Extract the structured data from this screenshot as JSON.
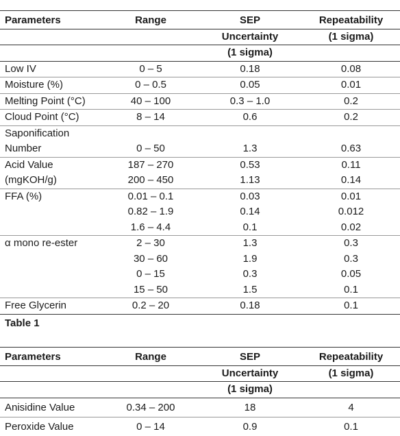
{
  "table1": {
    "headers": {
      "parameters": "Parameters",
      "range": "Range",
      "sep_line1": "SEP",
      "sep_line2": "Uncertainty",
      "sep_line3": "(1 sigma)",
      "rep_line1": "Repeatability",
      "rep_line2": "(1 sigma)"
    },
    "rows": [
      {
        "param": "Low IV",
        "range": "0 – 5",
        "sep": "0.18",
        "rep": "0.08"
      },
      {
        "param": "Moisture (%)",
        "range": "0 – 0.5",
        "sep": "0.05",
        "rep": "0.01"
      },
      {
        "param": "Melting Point (°C)",
        "range": "40 – 100",
        "sep": "0.3 – 1.0",
        "rep": "0.2"
      },
      {
        "param": "Cloud Point (°C)",
        "range": "8 – 14",
        "sep": "0.6",
        "rep": "0.2"
      },
      {
        "param": "Saponification",
        "range": "",
        "sep": "",
        "rep": ""
      },
      {
        "param": "Number",
        "range": "0 – 50",
        "sep": "1.3",
        "rep": "0.63"
      },
      {
        "param": "Acid Value",
        "range": "187 – 270",
        "sep": "0.53",
        "rep": "0.11"
      },
      {
        "param": "(mgKOH/g)",
        "range": "200 – 450",
        "sep": "1.13",
        "rep": "0.14"
      },
      {
        "param": "FFA (%)",
        "range": "0.01 – 0.1",
        "sep": "0.03",
        "rep": "0.01"
      },
      {
        "param": "",
        "range": "0.82 – 1.9",
        "sep": "0.14",
        "rep": "0.012"
      },
      {
        "param": "",
        "range": "1.6 – 4.4",
        "sep": "0.1",
        "rep": "0.02"
      },
      {
        "param": "α mono re-ester",
        "range": "2 – 30",
        "sep": "1.3",
        "rep": "0.3"
      },
      {
        "param": "",
        "range": "30 – 60",
        "sep": "1.9",
        "rep": "0.3"
      },
      {
        "param": "",
        "range": "0 – 15",
        "sep": "0.3",
        "rep": "0.05"
      },
      {
        "param": "",
        "range": "15 – 50",
        "sep": "1.5",
        "rep": "0.1"
      },
      {
        "param": "Free Glycerin",
        "range": "0.2 – 20",
        "sep": "0.18",
        "rep": "0.1"
      }
    ],
    "caption": "Table 1"
  },
  "table2": {
    "headers": {
      "parameters": "Parameters",
      "range": "Range",
      "sep_line1": "SEP",
      "sep_line2": "Uncertainty",
      "sep_line3": "(1 sigma)",
      "rep_line1": "Repeatability",
      "rep_line2": "(1 sigma)"
    },
    "rows": [
      {
        "param": "Anisidine Value",
        "range": "0.34 – 200",
        "sep": "18",
        "rep": "4"
      },
      {
        "param": "Peroxide Value",
        "range": "0 – 14",
        "sep": "0.9",
        "rep": "0.1"
      }
    ]
  }
}
